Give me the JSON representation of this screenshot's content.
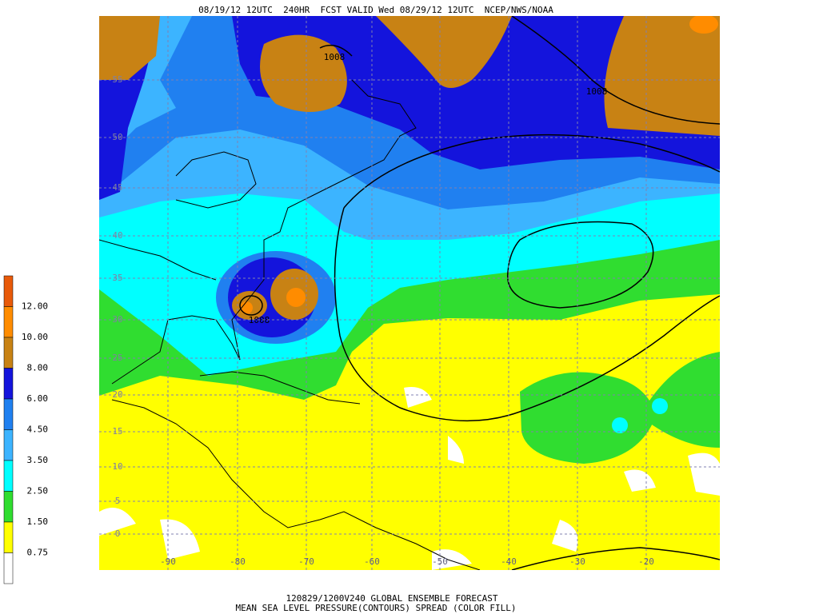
{
  "header": {
    "title": "08/19/12 12UTC  240HR  FCST VALID Wed 08/29/12 12UTC  NCEP/NWS/NOAA"
  },
  "footer": {
    "line1": "120829/1200V240 GLOBAL ENSEMBLE FORECAST",
    "line2": "MEAN SEA LEVEL PRESSURE(CONTOURS) SPREAD (COLOR FILL)"
  },
  "map": {
    "lon_labels": [
      "-90",
      "-80",
      "-70",
      "-60",
      "-50",
      "-40",
      "-30",
      "-20"
    ],
    "lat_labels": [
      "55",
      "50",
      "45",
      "40",
      "35",
      "30",
      "25",
      "20",
      "15",
      "10",
      "5",
      "0"
    ],
    "contour_labels": [
      "1008",
      "1008",
      "1008"
    ]
  },
  "colorbar": {
    "labels": [
      "12.00",
      "10.00",
      "8.00",
      "6.00",
      "4.50",
      "3.50",
      "2.50",
      "1.50",
      "0.75"
    ],
    "colors": [
      "#e85a0a",
      "#ff8c00",
      "#c88214",
      "#1414dc",
      "#2080f0",
      "#3cb4ff",
      "#00ffff",
      "#30dd30",
      "#ffff00",
      "#ffffff"
    ]
  }
}
